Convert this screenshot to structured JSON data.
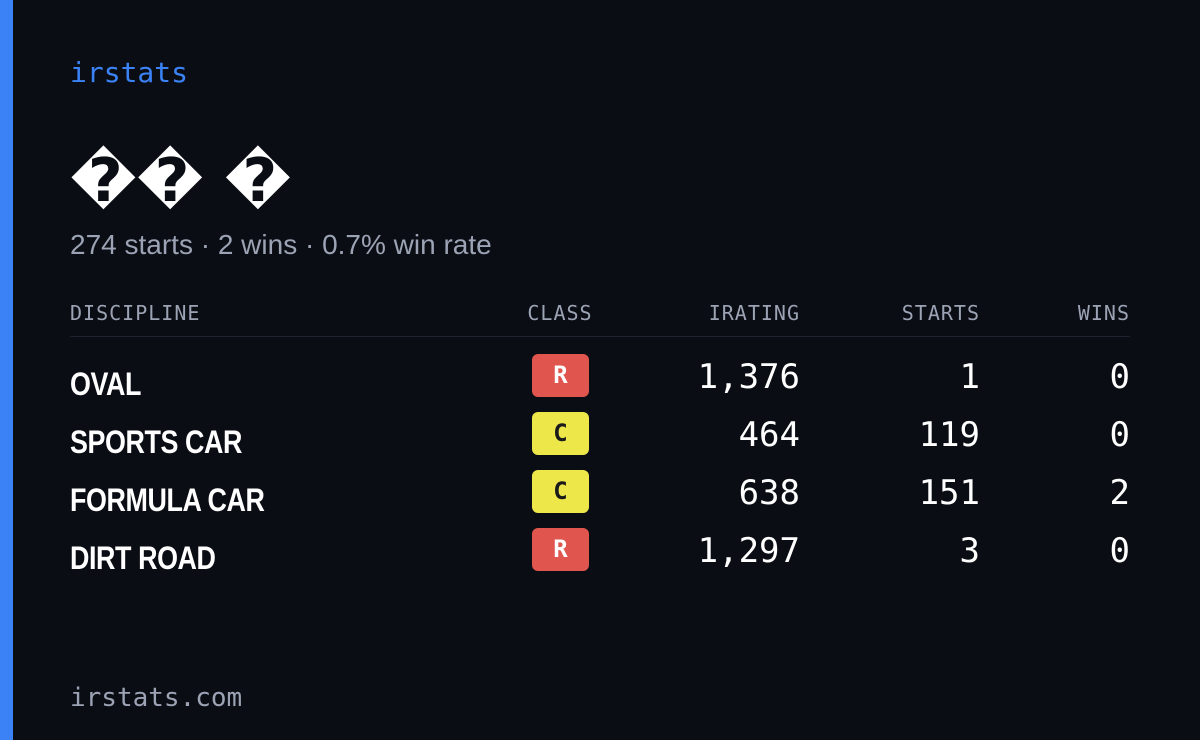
{
  "brand": "irstats",
  "driver": {
    "name": "�� �"
  },
  "summary": "274 starts · 2 wins · 0.7% win rate",
  "table": {
    "headers": {
      "discipline": "DISCIPLINE",
      "class": "CLASS",
      "irating": "IRATING",
      "starts": "STARTS",
      "wins": "WINS"
    },
    "rows": [
      {
        "discipline": "OVAL",
        "class": "R",
        "irating": "1,376",
        "starts": "1",
        "wins": "0"
      },
      {
        "discipline": "SPORTS CAR",
        "class": "C",
        "irating": "464",
        "starts": "119",
        "wins": "0"
      },
      {
        "discipline": "FORMULA CAR",
        "class": "C",
        "irating": "638",
        "starts": "151",
        "wins": "2"
      },
      {
        "discipline": "DIRT ROAD",
        "class": "R",
        "irating": "1,297",
        "starts": "3",
        "wins": "0"
      }
    ]
  },
  "footer": "irstats.com",
  "colors": {
    "background": "#0a0d14",
    "accent": "#3b82f6",
    "class_r": "#e0554d",
    "class_c": "#ede74a",
    "muted_text": "#9ca3b4"
  }
}
